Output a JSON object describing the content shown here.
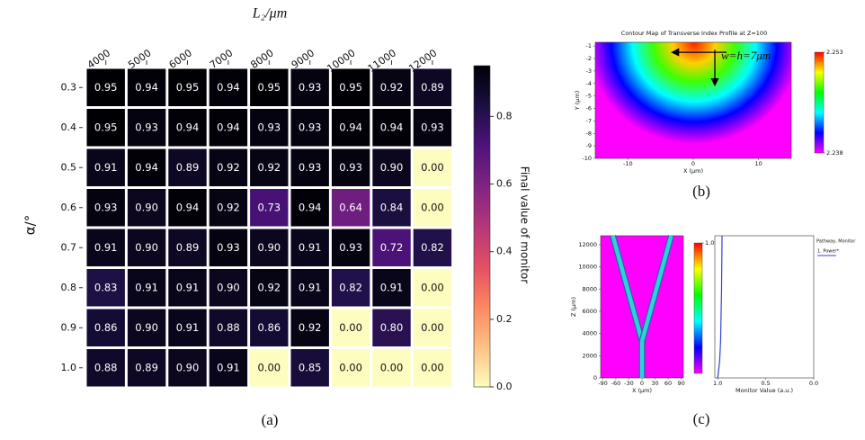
{
  "chart_data": [
    {
      "type": "heatmap",
      "title": "L₂/μm",
      "y_label": "α/°",
      "colorbar_label": "Final value of monitor",
      "panel_label": "(a)",
      "colormap": "magma_r",
      "categories": [
        "4000",
        "5000",
        "6000",
        "7000",
        "8000",
        "9000",
        "10000",
        "11000",
        "12000"
      ],
      "rows": [
        "0.3",
        "0.4",
        "0.5",
        "0.6",
        "0.7",
        "0.8",
        "0.9",
        "1.0"
      ],
      "values": [
        [
          0.95,
          0.94,
          0.95,
          0.94,
          0.95,
          0.93,
          0.95,
          0.92,
          0.89
        ],
        [
          0.95,
          0.93,
          0.94,
          0.94,
          0.93,
          0.93,
          0.94,
          0.94,
          0.93
        ],
        [
          0.91,
          0.94,
          0.89,
          0.92,
          0.92,
          0.93,
          0.93,
          0.9,
          0
        ],
        [
          0.93,
          0.9,
          0.94,
          0.92,
          0.73,
          0.94,
          0.64,
          0.84,
          0
        ],
        [
          0.91,
          0.9,
          0.89,
          0.93,
          0.9,
          0.91,
          0.93,
          0.72,
          0.82
        ],
        [
          0.83,
          0.91,
          0.91,
          0.9,
          0.92,
          0.91,
          0.82,
          0.91,
          0
        ],
        [
          0.86,
          0.9,
          0.91,
          0.88,
          0.86,
          0.92,
          0,
          0.8,
          0
        ],
        [
          0.88,
          0.89,
          0.9,
          0.91,
          0,
          0.85,
          0,
          0,
          0
        ]
      ],
      "value_labels": [
        [
          "0.95",
          "0.94",
          "0.95",
          "0.94",
          "0.95",
          "0.93",
          "0.95",
          "0.92",
          "0.89"
        ],
        [
          "0.95",
          "0.93",
          "0.94",
          "0.94",
          "0.93",
          "0.93",
          "0.94",
          "0.94",
          "0.93"
        ],
        [
          "0.91",
          "0.94",
          "0.89",
          "0.92",
          "0.92",
          "0.93",
          "0.93",
          "0.90",
          "0.00"
        ],
        [
          "0.93",
          "0.90",
          "0.94",
          "0.92",
          "0.73",
          "0.94",
          "0.64",
          "0.84",
          "0.00"
        ],
        [
          "0.91",
          "0.90",
          "0.89",
          "0.93",
          "0.90",
          "0.91",
          "0.93",
          "0.72",
          "0.82"
        ],
        [
          "0.83",
          "0.91",
          "0.91",
          "0.90",
          "0.92",
          "0.91",
          "0.82",
          "0.91",
          "0.00"
        ],
        [
          "0.86",
          "0.90",
          "0.91",
          "0.88",
          "0.86",
          "0.92",
          "0.00",
          "0.80",
          "0.00"
        ],
        [
          "0.88",
          "0.89",
          "0.90",
          "0.91",
          "0.00",
          "0.85",
          "0.00",
          "0.00",
          "0.00"
        ]
      ],
      "clim": [
        0,
        0.95
      ],
      "colorbar_ticks": [
        {
          "value": 0,
          "label": "0.0"
        },
        0.2,
        0.4,
        0.6,
        0.8
      ]
    },
    {
      "type": "contour",
      "title": "Contour Map of Transverse Index Profile at Z=100",
      "x_label": "X (μm)",
      "y_label": "Y (μm)",
      "annotation": "w=h=7μm",
      "panel_label": "(b)",
      "xlim": [
        -15,
        15
      ],
      "ylim": [
        -10,
        -0.7
      ],
      "xticks": [
        -10,
        0,
        10
      ],
      "yticks": [
        -1,
        -2,
        -3,
        -4,
        -5,
        -6,
        -7,
        -8,
        -9,
        -10
      ],
      "clim": [
        2.238,
        2.253
      ],
      "colorbar_ticks": [
        2.238,
        2.253
      ]
    },
    {
      "type": "waveguide",
      "x_label": "X (μm)",
      "y_label": "Z (μm)",
      "panel_label": "(c)",
      "xlim": [
        -95,
        95
      ],
      "ylim": [
        0,
        12800
      ],
      "xticks": [
        -90,
        -60,
        -30,
        0,
        30,
        60,
        90
      ],
      "yticks": [
        0,
        2000,
        4000,
        6000,
        8000,
        10000,
        12000
      ],
      "series": [
        {
          "color": "#2fd0d8",
          "x": [
            -67,
            0,
            0
          ],
          "y": [
            12800,
            3300,
            0
          ]
        },
        {
          "color": "#2fd0d8",
          "x": [
            67,
            0
          ],
          "y": [
            12800,
            3300
          ]
        }
      ],
      "clim": [
        0,
        1
      ],
      "colorbar_ticks": [
        {
          "value": 1,
          "label": "1.0"
        }
      ]
    },
    {
      "type": "monitor",
      "x_label": "Monitor Value (a.u.)",
      "legend_title": "Pathway, Monitor",
      "xlim": [
        1.03,
        0
      ],
      "ylim": [
        0,
        12800
      ],
      "xticks": [
        {
          "value": 1,
          "label": "1.0"
        },
        0.5,
        {
          "value": 0,
          "label": "0.0"
        }
      ],
      "series": [
        {
          "name": "1. Power*",
          "color": "#3344cc",
          "x": [
            1.0,
            0.98,
            0.97,
            0.96,
            0.955
          ],
          "y": [
            0,
            1500,
            3300,
            8000,
            12800
          ]
        }
      ]
    }
  ]
}
